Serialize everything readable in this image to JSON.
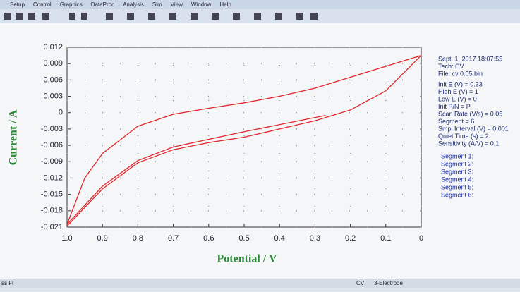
{
  "menu": [
    "Setup",
    "Control",
    "Graphics",
    "DataProc",
    "Analysis",
    "Sim",
    "View",
    "Window",
    "Help"
  ],
  "chart_data": {
    "type": "line",
    "xlabel": "Potential / V",
    "ylabel": "Current / A",
    "color": "#e0282e",
    "grid": true,
    "xlim": [
      1,
      0
    ],
    "ylim": [
      -0.021,
      0.012
    ],
    "xticks": [
      {
        "value": 1,
        "label": "1.0"
      },
      0.9,
      0.8,
      0.7,
      0.6,
      0.5,
      0.4,
      0.3,
      0.2,
      0.1,
      0
    ],
    "yticks": [
      0.012,
      0.009,
      0.006,
      0.003,
      0,
      -0.003,
      -0.006,
      -0.009,
      -0.012,
      -0.015,
      -0.018,
      -0.021
    ],
    "x": [
      0.27,
      0.5,
      0.7,
      0.8,
      0.9,
      1,
      0.95,
      0.9,
      0.8,
      0.7,
      0.6,
      0.5,
      0.4,
      0.3,
      0.2,
      0.1,
      0,
      0.1,
      0.2,
      0.3,
      0.4,
      0.5,
      0.6,
      0.7,
      0.8,
      0.9,
      1
    ],
    "values": [
      -0.0005,
      -0.0035,
      -0.0063,
      -0.0088,
      -0.0135,
      -0.0205,
      -0.012,
      -0.0075,
      -0.0025,
      -0.0003,
      0.0008,
      0.0018,
      0.003,
      0.0045,
      0.0065,
      0.0085,
      0.0105,
      0.004,
      0.0005,
      -0.0015,
      -0.003,
      -0.0045,
      -0.0055,
      -0.0068,
      -0.0092,
      -0.014,
      -0.0208
    ]
  },
  "info": [
    "Sept. 1, 2017   18:07:55",
    "Tech: CV",
    "File: cv 0.05.bin",
    "Init E (V) = 0.33",
    "High E (V) = 1",
    "Low E (V) = 0",
    "Init P/N = P",
    "Scan Rate (V/s) = 0.05",
    "Segment = 6",
    "Smpl Interval (V) = 0.001",
    "Quiet Time (s) = 2",
    "Sensitivity (A/V) = 0.1"
  ],
  "segments": [
    "Segment 1:",
    "Segment 2:",
    "Segment 3:",
    "Segment 4:",
    "Segment 5:",
    "Segment 6:"
  ],
  "status": [
    "ss Fl",
    "CV",
    "3-Electrode"
  ]
}
